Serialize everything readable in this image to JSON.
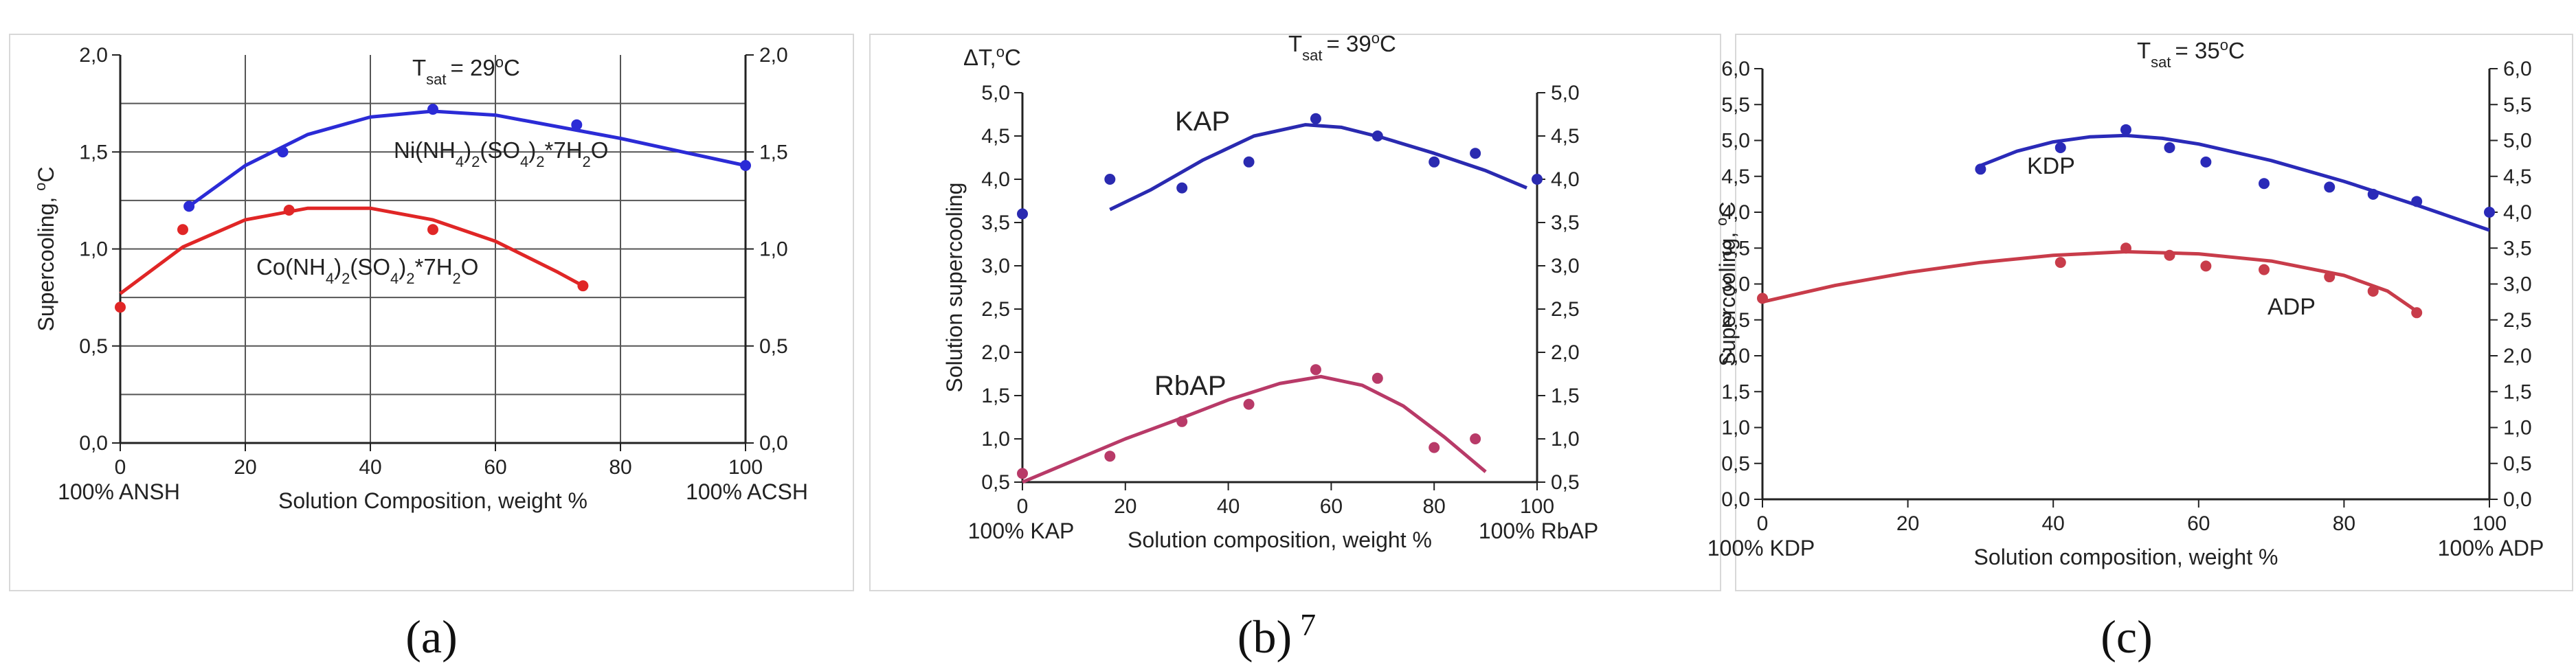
{
  "chart_data": [
    {
      "id": "a",
      "type": "scatter",
      "caption": "(a)",
      "condition": "T<sub>sat</sub> = 29°C",
      "condition_parts": {
        "T": "T",
        "sub": "sat",
        "eq": "= 29",
        "deg": "o",
        "unit": "C"
      },
      "ylabel": "Supercooling, °C",
      "ylabel_parts": {
        "main": "Supercooling, ",
        "deg": "o",
        "unit": "C"
      },
      "xlabel": "Solution Composition, weight %",
      "x_left_label": "100% ANSH",
      "x_right_label": "100% ACSH",
      "xlim": [
        0,
        100
      ],
      "ylim": [
        0,
        2
      ],
      "x_ticks": [
        0,
        20,
        40,
        60,
        80,
        100
      ],
      "x_tick_labels": [
        "0",
        "20",
        "40",
        "60",
        "80",
        "100"
      ],
      "y_ticks": [
        0,
        0.5,
        1.0,
        1.5,
        2.0
      ],
      "y_tick_labels": [
        "0,0",
        "0,5",
        "1,0",
        "1,5",
        "2,0"
      ],
      "grid_y": [
        0.25,
        0.5,
        0.75,
        1.0,
        1.25,
        1.5,
        1.75
      ],
      "series": [
        {
          "name": "Ni(NH4)2(SO4)2*7H2O",
          "color": "#2b2bd6",
          "points": [
            [
              11,
              1.22
            ],
            [
              26,
              1.5
            ],
            [
              50,
              1.72
            ],
            [
              73,
              1.64
            ],
            [
              100,
              1.43
            ]
          ],
          "curve": [
            [
              11,
              1.22
            ],
            [
              20,
              1.43
            ],
            [
              30,
              1.59
            ],
            [
              40,
              1.68
            ],
            [
              50,
              1.71
            ],
            [
              60,
              1.69
            ],
            [
              70,
              1.63
            ],
            [
              80,
              1.57
            ],
            [
              90,
              1.5
            ],
            [
              100,
              1.43
            ]
          ]
        },
        {
          "name": "Co(NH4)2(SO4)2*7H2O",
          "color": "#e02626",
          "points": [
            [
              0,
              0.7
            ],
            [
              10,
              1.1
            ],
            [
              27,
              1.2
            ],
            [
              50,
              1.1
            ],
            [
              74,
              0.81
            ]
          ],
          "curve": [
            [
              0,
              0.77
            ],
            [
              10,
              1.01
            ],
            [
              20,
              1.15
            ],
            [
              30,
              1.21
            ],
            [
              40,
              1.21
            ],
            [
              50,
              1.15
            ],
            [
              60,
              1.04
            ],
            [
              70,
              0.88
            ],
            [
              74,
              0.81
            ]
          ]
        }
      ],
      "annotations": [
        {
          "series": 0,
          "parts": [
            "Ni(NH",
            "4",
            ")",
            "2",
            "(SO",
            "4",
            ")",
            "2",
            "*7H",
            "2",
            "O"
          ]
        },
        {
          "series": 1,
          "parts": [
            "Co(NH",
            "4",
            ")",
            "2",
            "(SO",
            "4",
            ")",
            "2",
            "*7H",
            "2",
            "O"
          ]
        }
      ]
    },
    {
      "id": "b",
      "type": "scatter",
      "caption": "(b) 7",
      "caption_parts": {
        "main": "(b)",
        "sup": "7"
      },
      "condition": "T<sub>sat</sub> = 39°C",
      "condition_parts": {
        "T": "T",
        "sub": "sat",
        "eq": "= 39",
        "deg": "o",
        "unit": "C"
      },
      "ylabel": "Solution supercooling",
      "top_left_label": "ΔT,°C",
      "top_left_parts": {
        "main": "ΔT,",
        "deg": "o",
        "unit": "C"
      },
      "xlabel": "Solution composition, weight %",
      "x_left_label": "100% KAP",
      "x_right_label": "100% RbAP",
      "xlim": [
        0,
        100
      ],
      "ylim": [
        0.5,
        5.0
      ],
      "x_ticks": [
        0,
        20,
        40,
        60,
        80,
        100
      ],
      "x_tick_labels": [
        "0",
        "20",
        "40",
        "60",
        "80",
        "100"
      ],
      "y_ticks": [
        0.5,
        1.0,
        1.5,
        2.0,
        2.5,
        3.0,
        3.5,
        4.0,
        4.5,
        5.0
      ],
      "y_tick_labels": [
        "0,5",
        "1,0",
        "1,5",
        "2,0",
        "2,5",
        "3,0",
        "3,5",
        "4,0",
        "4,5",
        "5,0"
      ],
      "series": [
        {
          "name": "KAP",
          "color": "#2a2ab0",
          "points": [
            [
              0,
              3.6
            ],
            [
              17,
              4.0
            ],
            [
              31,
              3.9
            ],
            [
              44,
              4.2
            ],
            [
              57,
              4.7
            ],
            [
              69,
              4.5
            ],
            [
              80,
              4.2
            ],
            [
              88,
              4.3
            ],
            [
              100,
              4.0
            ]
          ],
          "curve": [
            [
              17,
              3.65
            ],
            [
              25,
              3.88
            ],
            [
              35,
              4.22
            ],
            [
              45,
              4.5
            ],
            [
              55,
              4.63
            ],
            [
              62,
              4.6
            ],
            [
              70,
              4.48
            ],
            [
              80,
              4.3
            ],
            [
              90,
              4.1
            ],
            [
              98,
              3.9
            ]
          ]
        },
        {
          "name": "RbAP",
          "color": "#b83a68",
          "points": [
            [
              0,
              0.6
            ],
            [
              17,
              0.8
            ],
            [
              31,
              1.2
            ],
            [
              44,
              1.4
            ],
            [
              57,
              1.8
            ],
            [
              69,
              1.7
            ],
            [
              80,
              0.9
            ],
            [
              88,
              1.0
            ]
          ],
          "curve": [
            [
              0,
              0.5
            ],
            [
              10,
              0.75
            ],
            [
              20,
              1.0
            ],
            [
              30,
              1.22
            ],
            [
              40,
              1.45
            ],
            [
              50,
              1.64
            ],
            [
              58,
              1.72
            ],
            [
              66,
              1.62
            ],
            [
              74,
              1.38
            ],
            [
              82,
              1.02
            ],
            [
              90,
              0.62
            ]
          ]
        }
      ],
      "series_labels": [
        "KAP",
        "RbAP"
      ]
    },
    {
      "id": "c",
      "type": "scatter",
      "caption": "(c)",
      "condition": "T<sub>sat</sub> = 35°C",
      "condition_parts": {
        "T": "T",
        "sub": "sat",
        "eq": "= 35",
        "deg": "o",
        "unit": "C"
      },
      "ylabel": "Supercooling, °C",
      "ylabel_parts": {
        "main": "Supercooling, ",
        "deg": "o",
        "unit": "C"
      },
      "xlabel": "Solution composition, weight %",
      "x_left_label": "100% KDP",
      "x_right_label": "100% ADP",
      "xlim": [
        0,
        100
      ],
      "ylim": [
        0,
        6
      ],
      "x_ticks": [
        0,
        20,
        40,
        60,
        80,
        100
      ],
      "x_tick_labels": [
        "0",
        "20",
        "40",
        "60",
        "80",
        "100"
      ],
      "y_ticks": [
        0,
        0.5,
        1.0,
        1.5,
        2.0,
        2.5,
        3.0,
        3.5,
        4.0,
        4.5,
        5.0,
        5.5,
        6.0
      ],
      "y_tick_labels": [
        "0,0",
        "0,5",
        "1,0",
        "1,5",
        "2,0",
        "2,5",
        "3,0",
        "3,5",
        "4,0",
        "4,5",
        "5,0",
        "5,5",
        "6,0"
      ],
      "series": [
        {
          "name": "KDP",
          "color": "#2a2ab8",
          "points": [
            [
              30,
              4.6
            ],
            [
              41,
              4.9
            ],
            [
              50,
              5.15
            ],
            [
              56,
              4.9
            ],
            [
              61,
              4.7
            ],
            [
              69,
              4.4
            ],
            [
              78,
              4.35
            ],
            [
              84,
              4.25
            ],
            [
              90,
              4.15
            ],
            [
              100,
              4.0
            ]
          ],
          "curve": [
            [
              30,
              4.65
            ],
            [
              35,
              4.85
            ],
            [
              40,
              4.98
            ],
            [
              45,
              5.05
            ],
            [
              50,
              5.07
            ],
            [
              55,
              5.03
            ],
            [
              60,
              4.95
            ],
            [
              70,
              4.72
            ],
            [
              80,
              4.43
            ],
            [
              90,
              4.1
            ],
            [
              100,
              3.75
            ]
          ]
        },
        {
          "name": "ADP",
          "color": "#c83c4a",
          "points": [
            [
              0,
              2.8
            ],
            [
              41,
              3.3
            ],
            [
              50,
              3.5
            ],
            [
              56,
              3.4
            ],
            [
              61,
              3.25
            ],
            [
              69,
              3.2
            ],
            [
              78,
              3.1
            ],
            [
              84,
              2.9
            ],
            [
              90,
              2.6
            ]
          ],
          "curve": [
            [
              0,
              2.75
            ],
            [
              10,
              2.98
            ],
            [
              20,
              3.16
            ],
            [
              30,
              3.3
            ],
            [
              40,
              3.4
            ],
            [
              50,
              3.45
            ],
            [
              60,
              3.42
            ],
            [
              70,
              3.32
            ],
            [
              80,
              3.12
            ],
            [
              86,
              2.9
            ],
            [
              90,
              2.62
            ]
          ]
        }
      ],
      "series_labels": [
        "KDP",
        "ADP"
      ]
    }
  ]
}
